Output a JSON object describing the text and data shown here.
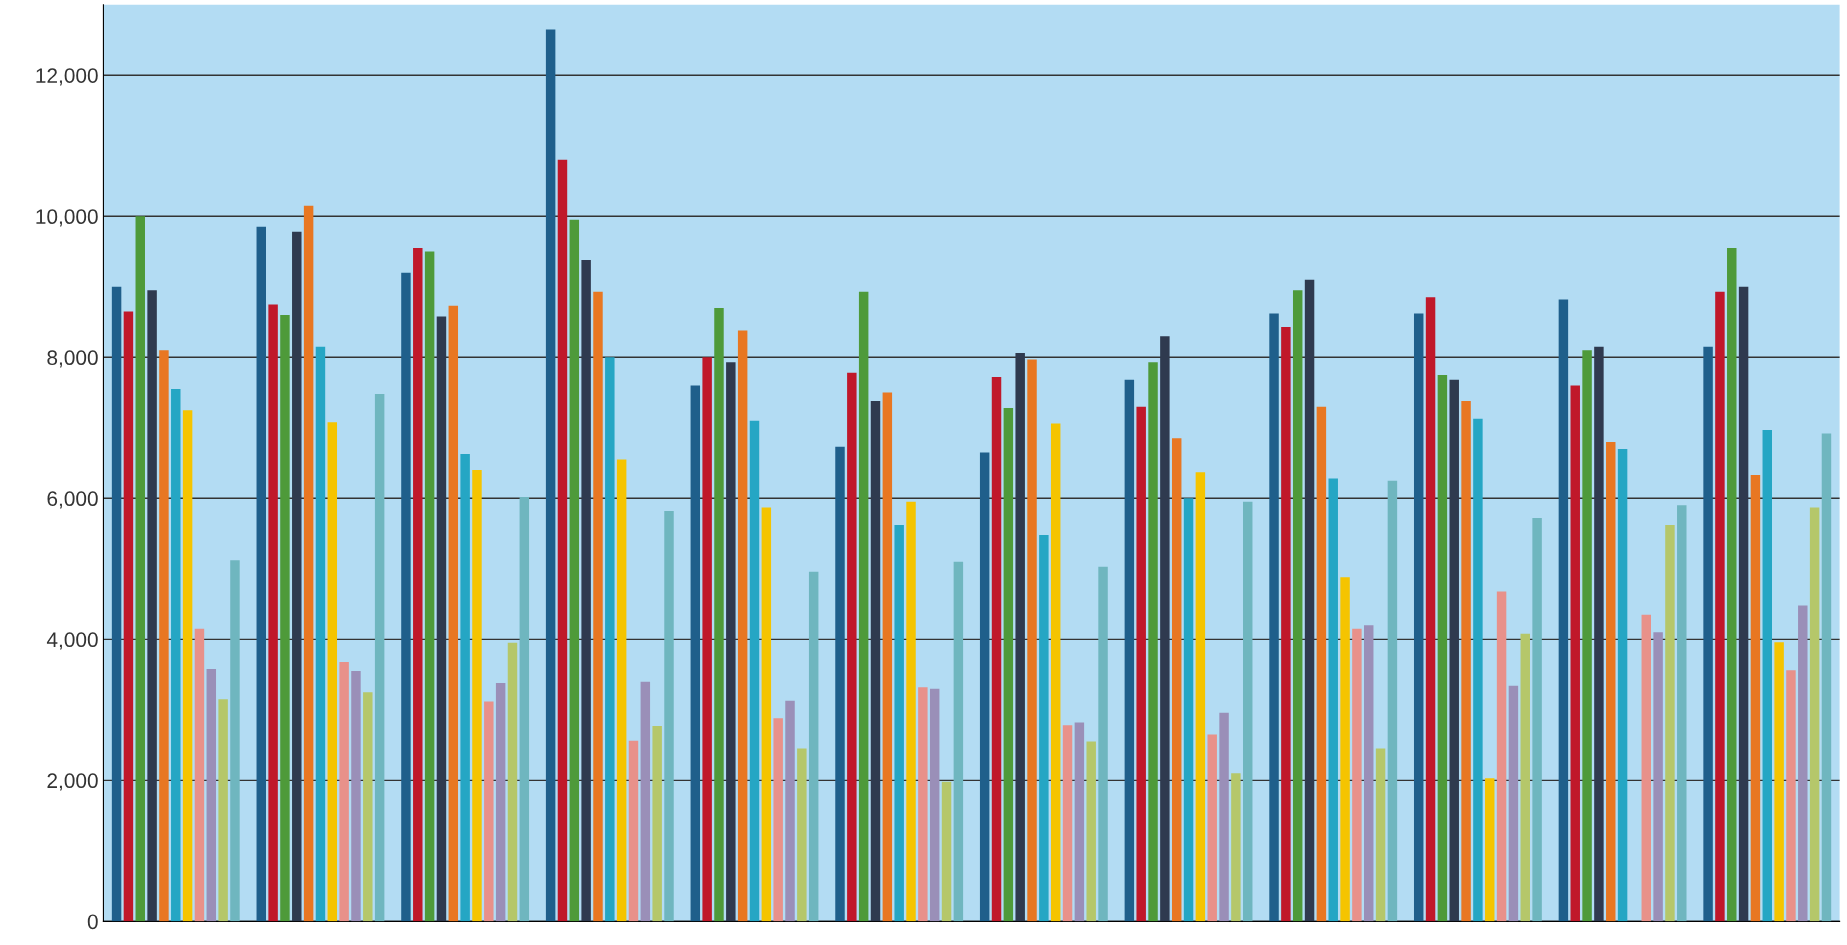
{
  "chart_data": {
    "type": "bar",
    "categories": [
      null,
      null,
      null,
      null,
      null,
      null,
      null,
      null,
      null,
      null,
      null,
      null
    ],
    "series": [
      {
        "color": "#1f5f8b",
        "values": [
          9000,
          9850,
          9200,
          12650,
          7600,
          6730,
          6650,
          7680,
          8620,
          8620,
          8820,
          8150
        ]
      },
      {
        "color": "#c0182a",
        "values": [
          8650,
          8750,
          9550,
          10800,
          8000,
          7780,
          7720,
          7300,
          8430,
          8850,
          7600,
          8930
        ]
      },
      {
        "color": "#4e9a3a",
        "values": [
          10000,
          8600,
          9500,
          9950,
          8700,
          8930,
          7280,
          7930,
          8950,
          7750,
          8100,
          9550
        ]
      },
      {
        "color": "#2f3a4f",
        "values": [
          8950,
          9780,
          8580,
          9380,
          7930,
          7380,
          8060,
          8300,
          9100,
          7680,
          8150,
          9000
        ]
      },
      {
        "color": "#e87722",
        "values": [
          8100,
          10150,
          8730,
          8930,
          8380,
          7500,
          7970,
          6850,
          7300,
          7380,
          6800,
          6330
        ]
      },
      {
        "color": "#25a6c4",
        "values": [
          7550,
          8150,
          6630,
          8000,
          7100,
          5620,
          5480,
          6000,
          6280,
          7130,
          6700,
          6970
        ]
      },
      {
        "color": "#f5c400",
        "values": [
          7250,
          7080,
          6400,
          6550,
          5870,
          5950,
          7060,
          6370,
          4880,
          2030,
          null,
          3960
        ]
      },
      {
        "color": "#e8918a",
        "values": [
          4150,
          3680,
          3120,
          2560,
          2880,
          3320,
          2780,
          2650,
          4150,
          4680,
          4350,
          3560
        ]
      },
      {
        "color": "#9a8fb8",
        "values": [
          3580,
          3550,
          3380,
          3400,
          3130,
          3300,
          2820,
          2960,
          4200,
          3340,
          4100,
          4480
        ]
      },
      {
        "color": "#b5c76a",
        "values": [
          3150,
          3250,
          3950,
          2770,
          2450,
          1980,
          2550,
          2100,
          2450,
          4080,
          5620,
          5870
        ]
      },
      {
        "color": "#6fb6bf",
        "values": [
          5120,
          7480,
          6020,
          5820,
          4960,
          5100,
          5030,
          5950,
          6250,
          5720,
          5900,
          6920
        ]
      }
    ],
    "ylim": [
      0,
      13000
    ],
    "yticks": [
      {
        "value": 0,
        "label": "0"
      },
      {
        "value": 2000,
        "label": "2,000"
      },
      {
        "value": 4000,
        "label": "4,000"
      },
      {
        "value": 6000,
        "label": "6,000"
      },
      {
        "value": 8000,
        "label": "8,000"
      },
      {
        "value": 10000,
        "label": "10,000"
      },
      {
        "value": 12000,
        "label": "12,000"
      }
    ],
    "grid": "y",
    "tick_labels": "y"
  }
}
